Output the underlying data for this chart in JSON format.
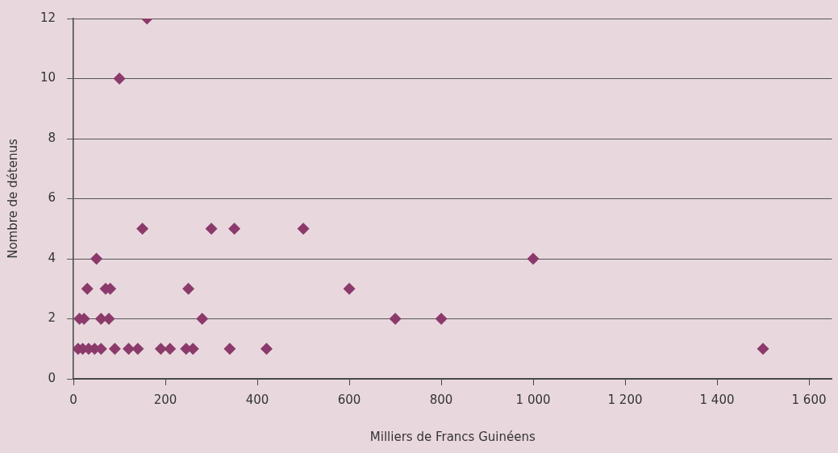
{
  "chart_data": {
    "type": "scatter",
    "xlabel": "Milliers de Francs Guinéens",
    "ylabel": "Nombre de détenus",
    "series": [
      {
        "color": "#8b3a6b",
        "x": [
          10,
          20,
          33,
          46,
          60,
          90,
          120,
          140,
          190,
          210,
          245,
          260,
          340,
          420,
          1500,
          13,
          23,
          60,
          77,
          280,
          700,
          800,
          30,
          70,
          80,
          250,
          600,
          50,
          1000,
          150,
          300,
          350,
          500,
          100,
          160
        ],
        "values": [
          1,
          1,
          1,
          1,
          1,
          1,
          1,
          1,
          1,
          1,
          1,
          1,
          1,
          1,
          1,
          2,
          2,
          2,
          2,
          2,
          2,
          2,
          3,
          3,
          3,
          3,
          3,
          4,
          4,
          5,
          5,
          5,
          5,
          10,
          12
        ]
      }
    ],
    "xlim": [
      0,
      1650
    ],
    "ylim": [
      0,
      12
    ],
    "xticks": [
      0,
      {
        "value": 200,
        "label": "200"
      },
      {
        "value": 400,
        "label": "400"
      },
      {
        "value": 600,
        "label": "600"
      },
      {
        "value": 800,
        "label": "800"
      },
      {
        "value": 1000,
        "label": "1 000"
      },
      {
        "value": 1200,
        "label": "1 200"
      },
      {
        "value": 1400,
        "label": "1 400"
      },
      {
        "value": 1600,
        "label": "1 600"
      }
    ],
    "yticks": [
      0,
      2,
      4,
      6,
      8,
      10,
      12
    ],
    "grid": "y",
    "legend": false,
    "marker": "diamond"
  }
}
